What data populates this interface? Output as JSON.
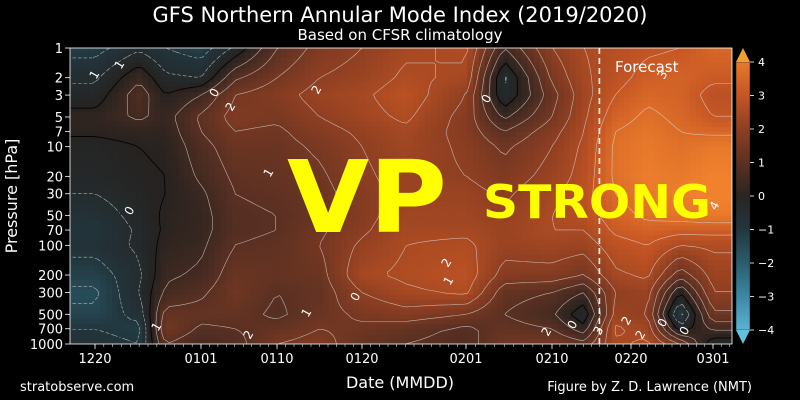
{
  "title": "GFS Northern Annular Mode Index (2019/2020)",
  "subtitle": "Based on CFSR climatology",
  "footer": {
    "site": "stratobserve.com",
    "credit": "Figure by Z. D. Lawrence (NMT)"
  },
  "overlay": {
    "big_text": "VP",
    "strong_text": "STRONG"
  },
  "chart_data": {
    "type": "heatmap",
    "title": "GFS Northern Annular Mode Index (2019/2020)",
    "subtitle": "Based on CFSR climatology",
    "xlabel": "Date (MMDD)",
    "ylabel": "Pressure [hPa]",
    "x_ticks": [
      "1220",
      "0101",
      "0110",
      "0120",
      "0201",
      "0210",
      "0220",
      "0301"
    ],
    "y_ticks": [
      1,
      2,
      3,
      5,
      7,
      10,
      20,
      30,
      50,
      70,
      100,
      200,
      300,
      500,
      700,
      1000
    ],
    "y_scale": "log",
    "y_reversed": true,
    "colorbar": {
      "ticks": [
        4,
        3,
        2,
        1,
        0,
        -1,
        -2,
        -3,
        -4
      ],
      "range": [
        -4,
        4
      ],
      "colors_low_to_high": [
        "#3f9fc0",
        "#2f6f86",
        "#233f4a",
        "#1f1f1f",
        "#3a2a22",
        "#6b3a24",
        "#a54d28",
        "#d9652d",
        "#f2a23a"
      ]
    },
    "forecast_label": "Forecast",
    "forecast_start": "0216",
    "contour_labels": [
      "1",
      "1",
      "0",
      "0",
      "2",
      "1",
      "0",
      "1",
      "0",
      "2",
      "1",
      "3",
      "4",
      "2",
      "2",
      "2",
      "1",
      "0",
      "0",
      "2",
      "2",
      "3",
      "0"
    ],
    "field": [
      {
        "date": "1220",
        "values": [
          -1.2,
          -0.6,
          -0.3,
          0.2,
          0.1,
          -0.2,
          -0.3,
          -0.5,
          -0.8,
          -1.0,
          -0.8,
          -1.3,
          -1.6,
          -1.4,
          -1.0,
          -0.8
        ]
      },
      {
        "date": "1225",
        "values": [
          -0.6,
          0.4,
          0.8,
          0.6,
          0.2,
          0.0,
          -0.1,
          -0.2,
          -0.3,
          -0.4,
          -0.4,
          -0.6,
          -0.5,
          -0.8,
          -1.2,
          -1.0
        ]
      },
      {
        "date": "1228",
        "values": [
          -1.0,
          -0.4,
          0.0,
          0.3,
          0.2,
          0.1,
          0.0,
          0.0,
          0.1,
          0.1,
          0.2,
          0.4,
          0.6,
          1.2,
          1.5,
          1.0
        ]
      },
      {
        "date": "0101",
        "values": [
          -1.3,
          -0.5,
          0.5,
          1.1,
          1.0,
          0.8,
          0.6,
          0.4,
          0.3,
          0.3,
          0.4,
          0.6,
          0.9,
          1.2,
          0.9,
          0.6
        ]
      },
      {
        "date": "0105",
        "values": [
          -0.4,
          0.9,
          1.5,
          1.7,
          1.5,
          1.3,
          1.1,
          1.0,
          0.9,
          0.9,
          1.0,
          1.3,
          1.4,
          1.2,
          1.0,
          0.8
        ]
      },
      {
        "date": "0110",
        "values": [
          1.0,
          1.5,
          1.8,
          1.6,
          1.4,
          1.3,
          1.2,
          1.1,
          1.0,
          1.0,
          1.1,
          1.2,
          1.0,
          0.9,
          1.2,
          1.5
        ]
      },
      {
        "date": "0115",
        "values": [
          1.7,
          2.0,
          2.2,
          2.0,
          1.8,
          1.6,
          1.4,
          1.3,
          1.3,
          1.4,
          1.5,
          1.3,
          1.2,
          1.3,
          1.5,
          1.7
        ]
      },
      {
        "date": "0120",
        "values": [
          2.0,
          2.2,
          2.4,
          2.3,
          2.1,
          2.0,
          1.9,
          1.8,
          1.8,
          1.9,
          2.1,
          2.4,
          2.0,
          1.6,
          1.4,
          1.2
        ]
      },
      {
        "date": "0125",
        "values": [
          2.4,
          2.6,
          2.8,
          2.6,
          2.4,
          2.3,
          2.2,
          2.2,
          2.3,
          2.4,
          2.5,
          2.6,
          2.4,
          1.8,
          1.2,
          1.0
        ]
      },
      {
        "date": "0201",
        "values": [
          2.6,
          2.4,
          2.0,
          1.8,
          1.8,
          1.9,
          2.0,
          2.2,
          2.3,
          2.4,
          2.6,
          2.8,
          2.6,
          1.5,
          0.9,
          0.8
        ]
      },
      {
        "date": "0205",
        "values": [
          0.5,
          -0.6,
          -0.5,
          0.4,
          1.0,
          1.4,
          1.7,
          1.9,
          2.1,
          2.2,
          2.2,
          1.8,
          1.2,
          1.0,
          1.2,
          1.4
        ]
      },
      {
        "date": "0210",
        "values": [
          2.0,
          1.6,
          1.3,
          1.5,
          1.8,
          2.0,
          2.2,
          2.4,
          2.5,
          2.5,
          2.3,
          1.8,
          1.0,
          0.6,
          1.0,
          1.5
        ]
      },
      {
        "date": "0214",
        "values": [
          2.5,
          2.4,
          2.3,
          2.4,
          2.5,
          2.6,
          2.7,
          2.8,
          2.7,
          2.5,
          2.2,
          1.5,
          0.5,
          -0.4,
          0.2,
          1.2
        ]
      },
      {
        "date": "0218",
        "values": [
          2.7,
          2.8,
          3.0,
          3.3,
          3.5,
          3.6,
          3.6,
          3.5,
          3.3,
          3.1,
          2.8,
          2.4,
          2.0,
          2.2,
          2.6,
          2.4
        ]
      },
      {
        "date": "0222",
        "values": [
          2.9,
          3.2,
          3.4,
          3.6,
          3.7,
          3.8,
          3.9,
          3.8,
          3.6,
          3.3,
          3.0,
          2.6,
          2.2,
          2.0,
          2.3,
          2.6
        ]
      },
      {
        "date": "0226",
        "values": [
          3.0,
          3.3,
          3.3,
          3.4,
          3.5,
          3.6,
          3.8,
          3.9,
          3.7,
          3.2,
          2.5,
          1.2,
          0.0,
          -1.2,
          -0.3,
          1.5
        ]
      },
      {
        "date": "0301",
        "values": [
          3.4,
          3.1,
          2.8,
          3.0,
          3.4,
          3.8,
          4.0,
          4.1,
          3.8,
          3.2,
          2.6,
          2.2,
          2.0,
          1.4,
          0.6,
          -0.4
        ]
      }
    ]
  }
}
